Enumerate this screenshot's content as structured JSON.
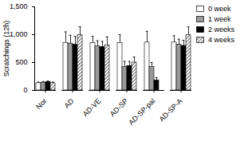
{
  "chart_data": {
    "type": "bar",
    "y_label": "Scratchings (12h)",
    "categories": [
      "Nor",
      "AD",
      "AD-VE",
      "AD-SP",
      "AD-SP-pal",
      "AD-SP-A"
    ],
    "series": [
      {
        "name": "0 week",
        "color": "#ffffff",
        "values": [
          130,
          850,
          850,
          850,
          860,
          860
        ],
        "errors": [
          20,
          200,
          120,
          150,
          200,
          120
        ]
      },
      {
        "name": "1 week",
        "color": "#999999",
        "values": [
          140,
          840,
          790,
          420,
          420,
          820
        ],
        "errors": [
          20,
          150,
          100,
          100,
          80,
          100
        ]
      },
      {
        "name": "2 weeks",
        "color": "#000000",
        "values": [
          150,
          820,
          780,
          440,
          180,
          800
        ],
        "errors": [
          20,
          150,
          100,
          80,
          50,
          100
        ]
      },
      {
        "name": "4 weeks",
        "color": "#ffffff",
        "line_style": "hatched",
        "values": [
          130,
          990,
          810,
          500,
          null,
          990
        ],
        "errors": [
          20,
          150,
          150,
          100,
          null,
          150
        ]
      }
    ],
    "ylim": [
      0,
      1500
    ],
    "yticks": [
      0,
      500,
      1000,
      1500
    ],
    "legend": "right"
  }
}
